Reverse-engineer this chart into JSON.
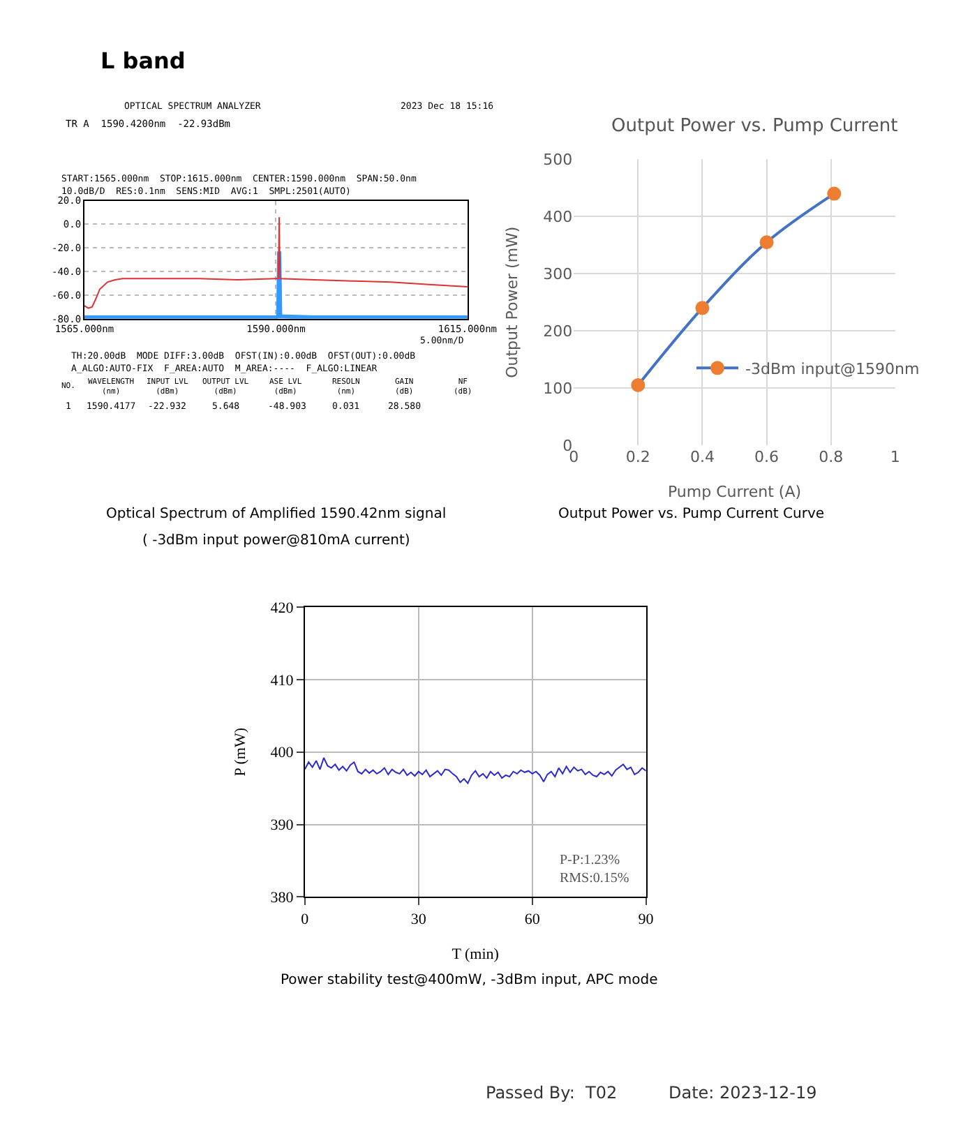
{
  "chart_data": [
    {
      "type": "line",
      "title": "L band",
      "marker": "none",
      "grid": true,
      "xlim": [
        1565,
        1615
      ],
      "xticks": [
        {
          "value": 1565,
          "label": "1565.000nm"
        },
        {
          "value": 1590,
          "label": "1590.000nm"
        },
        {
          "value": 1615,
          "label": "1615.000nm"
        }
      ],
      "ylim": [
        -80,
        20
      ],
      "yticks": [
        {
          "value": 20,
          "label": "20.0"
        },
        {
          "value": 0,
          "label": "0.0"
        },
        {
          "value": -20,
          "label": "-20.0"
        },
        {
          "value": -40,
          "label": "-40.0"
        },
        {
          "value": -60,
          "label": "-60.0"
        },
        {
          "value": -80,
          "label": "-80.0"
        }
      ],
      "series": [
        {
          "color": "#3399ff",
          "x": [
            1565,
            1570,
            1575,
            1580,
            1585,
            1590,
            1590.3,
            1590.42,
            1590.55,
            1595,
            1600,
            1605,
            1610,
            1615
          ],
          "values": [
            -79,
            -79,
            -79,
            -79,
            -79,
            -79,
            -78,
            -23,
            -78,
            -79,
            -79,
            -79,
            -79,
            -79
          ]
        },
        {
          "color": "#e03030",
          "x": [
            1565,
            1565.5,
            1566,
            1566.5,
            1567,
            1568,
            1569,
            1570,
            1575,
            1580,
            1585,
            1590,
            1590.3,
            1590.38,
            1590.42,
            1590.46,
            1590.55,
            1595,
            1600,
            1605,
            1610,
            1615
          ],
          "values": [
            -69,
            -71,
            -70,
            -63,
            -55,
            -49,
            -47,
            -46,
            -46,
            -46,
            -47,
            -46,
            -46,
            -20,
            6,
            -20,
            -46,
            -47,
            -48,
            -49,
            -51,
            -53
          ]
        }
      ],
      "annotations": [
        "OPTICAL SPECTRUM ANALYZER",
        "2023 Dec 18 15:16",
        "TR A  1590.4200nm  -22.93dBm",
        "START:1565.000nm  STOP:1615.000nm  CENTER:1590.000nm  SPAN:50.0nm",
        "10.0dB/D  RES:0.1nm  SENS:MID  AVG:1  SMPL:2501(AUTO)",
        "5.00nm/D",
        "TH:20.00dB  MODE DIFF:3.00dB  OFST(IN):0.00dB  OFST(OUT):0.00dB",
        "A_ALGO:AUTO-FIX  F_AREA:AUTO  M_AREA:----  F_ALGO:LINEAR",
        "NO.",
        "WAVELENGTH (nm)",
        "INPUT LVL (dBm)",
        "OUTPUT LVL (dBm)",
        "ASE LVL (dBm)",
        "RESOLN (nm)",
        "GAIN (dB)",
        "NF (dB)",
        "1",
        "1590.4177",
        "-22.932",
        "5.648",
        "-48.903",
        "0.031",
        "28.580",
        "Optical Spectrum of Amplified 1590.42nm signal",
        "( -3dBm input power@810mA current)"
      ]
    },
    {
      "type": "line",
      "title": "Output Power vs. Pump Current",
      "xlabel": "Pump Current (A)",
      "ylabel": "Output Power (mW)",
      "marker": "circle",
      "grid": true,
      "legend": "right",
      "xlim": [
        0,
        1
      ],
      "xticks": [
        0,
        0.2,
        0.4,
        0.6,
        0.8,
        1
      ],
      "ylim": [
        0,
        500
      ],
      "yticks": [
        0,
        100,
        200,
        300,
        400,
        500
      ],
      "series": [
        {
          "name": "-3dBm input@1590nm",
          "color": "#4472c4",
          "colors": [
            "#ed7d31",
            "#ed7d31",
            "#ed7d31",
            "#ed7d31"
          ],
          "x": [
            0.2,
            0.4,
            0.6,
            0.81
          ],
          "values": [
            105,
            240,
            355,
            440
          ]
        }
      ],
      "annotations": [
        "Output Power vs. Pump Current Curve"
      ]
    },
    {
      "type": "line",
      "xlabel": "T (min)",
      "ylabel": "P (mW)",
      "marker": "none",
      "grid": true,
      "xlim": [
        0,
        90
      ],
      "xticks": [
        0,
        30,
        60,
        90
      ],
      "ylim": [
        380,
        420
      ],
      "yticks": [
        380,
        390,
        400,
        410,
        420
      ],
      "series": [
        {
          "color": "#2a2ad0",
          "x": [
            0,
            1,
            2,
            3,
            4,
            5,
            6,
            7,
            8,
            9,
            10,
            11,
            12,
            13,
            14,
            15,
            16,
            17,
            18,
            19,
            20,
            21,
            22,
            23,
            24,
            25,
            26,
            27,
            28,
            29,
            30,
            31,
            32,
            33,
            34,
            35,
            36,
            37,
            38,
            39,
            40,
            41,
            42,
            43,
            44,
            45,
            46,
            47,
            48,
            49,
            50,
            51,
            52,
            53,
            54,
            55,
            56,
            57,
            58,
            59,
            60,
            61,
            62,
            63,
            64,
            65,
            66,
            67,
            68,
            69,
            70,
            71,
            72,
            73,
            74,
            75,
            76,
            77,
            78,
            79,
            80,
            81,
            82,
            83,
            84,
            85,
            86,
            87,
            88,
            89,
            90
          ],
          "values": [
            397.6,
            398.6,
            397.9,
            398.8,
            397.6,
            399.2,
            398.1,
            397.8,
            398.3,
            397.5,
            398.0,
            397.4,
            398.2,
            398.6,
            397.3,
            397.0,
            397.6,
            397.1,
            397.5,
            397.0,
            397.3,
            397.8,
            396.9,
            397.6,
            397.2,
            397.0,
            397.6,
            396.8,
            397.2,
            396.7,
            397.3,
            396.9,
            397.5,
            396.6,
            397.0,
            397.4,
            396.8,
            397.6,
            397.5,
            397.0,
            396.6,
            395.8,
            396.3,
            395.7,
            396.8,
            397.4,
            396.6,
            397.0,
            396.4,
            397.3,
            396.8,
            397.2,
            396.4,
            396.8,
            396.6,
            397.3,
            397.0,
            397.5,
            397.2,
            397.4,
            397.0,
            397.3,
            396.8,
            395.9,
            396.9,
            397.3,
            396.6,
            397.8,
            397.0,
            398.0,
            397.2,
            397.9,
            397.4,
            397.6,
            396.9,
            397.3,
            396.8,
            396.6,
            397.2,
            396.9,
            397.3,
            396.7,
            397.5,
            397.9,
            398.3,
            397.6,
            397.9,
            396.9,
            397.2,
            397.8,
            397.4
          ]
        }
      ],
      "annotations": [
        "P-P:1.23%",
        "RMS:0.15%",
        "Power stability test@400mW, -3dBm input, APC mode",
        "Passed By:  T02",
        "Date: 2023-12-19"
      ]
    }
  ]
}
